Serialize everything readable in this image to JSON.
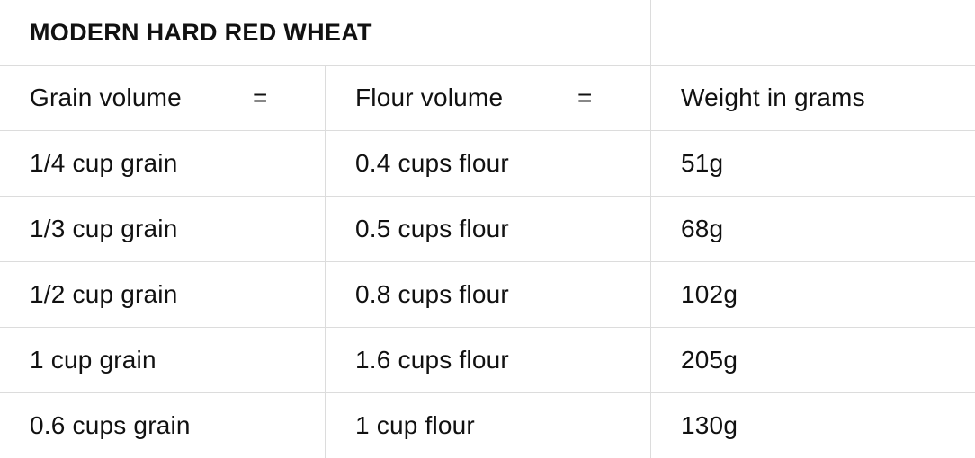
{
  "table": {
    "title": "MODERN HARD RED WHEAT",
    "headers": {
      "grain": "Grain volume",
      "flour": "Flour volume",
      "weight": "Weight in grams",
      "equals": "="
    },
    "rows": [
      {
        "grain": "1/4 cup grain",
        "flour": "0.4 cups flour",
        "weight": "51g"
      },
      {
        "grain": "1/3 cup grain",
        "flour": "0.5 cups flour",
        "weight": "68g"
      },
      {
        "grain": "1/2 cup grain",
        "flour": "0.8 cups flour",
        "weight": "102g"
      },
      {
        "grain": "1 cup grain",
        "flour": "1.6 cups flour",
        "weight": "205g"
      },
      {
        "grain": "0.6 cups grain",
        "flour": "1 cup flour",
        "weight": "130g"
      }
    ]
  }
}
